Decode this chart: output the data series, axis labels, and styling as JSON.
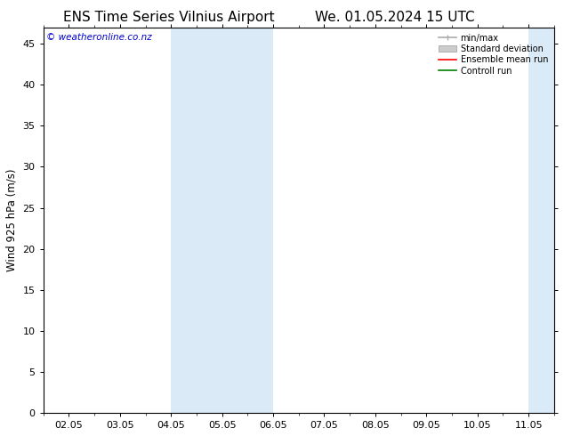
{
  "title_left": "ENS Time Series Vilnius Airport",
  "title_right": "We. 01.05.2024 15 UTC",
  "ylabel": "Wind 925 hPa (m/s)",
  "watermark": "© weatheronline.co.nz",
  "xtick_labels": [
    "02.05",
    "03.05",
    "04.05",
    "05.05",
    "06.05",
    "07.05",
    "08.05",
    "09.05",
    "10.05",
    "11.05"
  ],
  "ylim": [
    0,
    47
  ],
  "yticks": [
    0,
    5,
    10,
    15,
    20,
    25,
    30,
    35,
    40,
    45
  ],
  "shaded_color": "#daeaf7",
  "bg_color": "#ffffff",
  "plot_bg_color": "#ffffff",
  "legend_items": [
    {
      "label": "min/max",
      "color": "#aaaaaa",
      "lw": 1.2,
      "style": "line_with_caps"
    },
    {
      "label": "Standard deviation",
      "color": "#cccccc",
      "lw": 5,
      "style": "band"
    },
    {
      "label": "Ensemble mean run",
      "color": "#ff0000",
      "lw": 1.2,
      "style": "line"
    },
    {
      "label": "Controll run",
      "color": "#008000",
      "lw": 1.2,
      "style": "line"
    }
  ],
  "title_fontsize": 11,
  "axis_fontsize": 8.5,
  "watermark_color": "#0000cc",
  "tick_fontsize": 8
}
